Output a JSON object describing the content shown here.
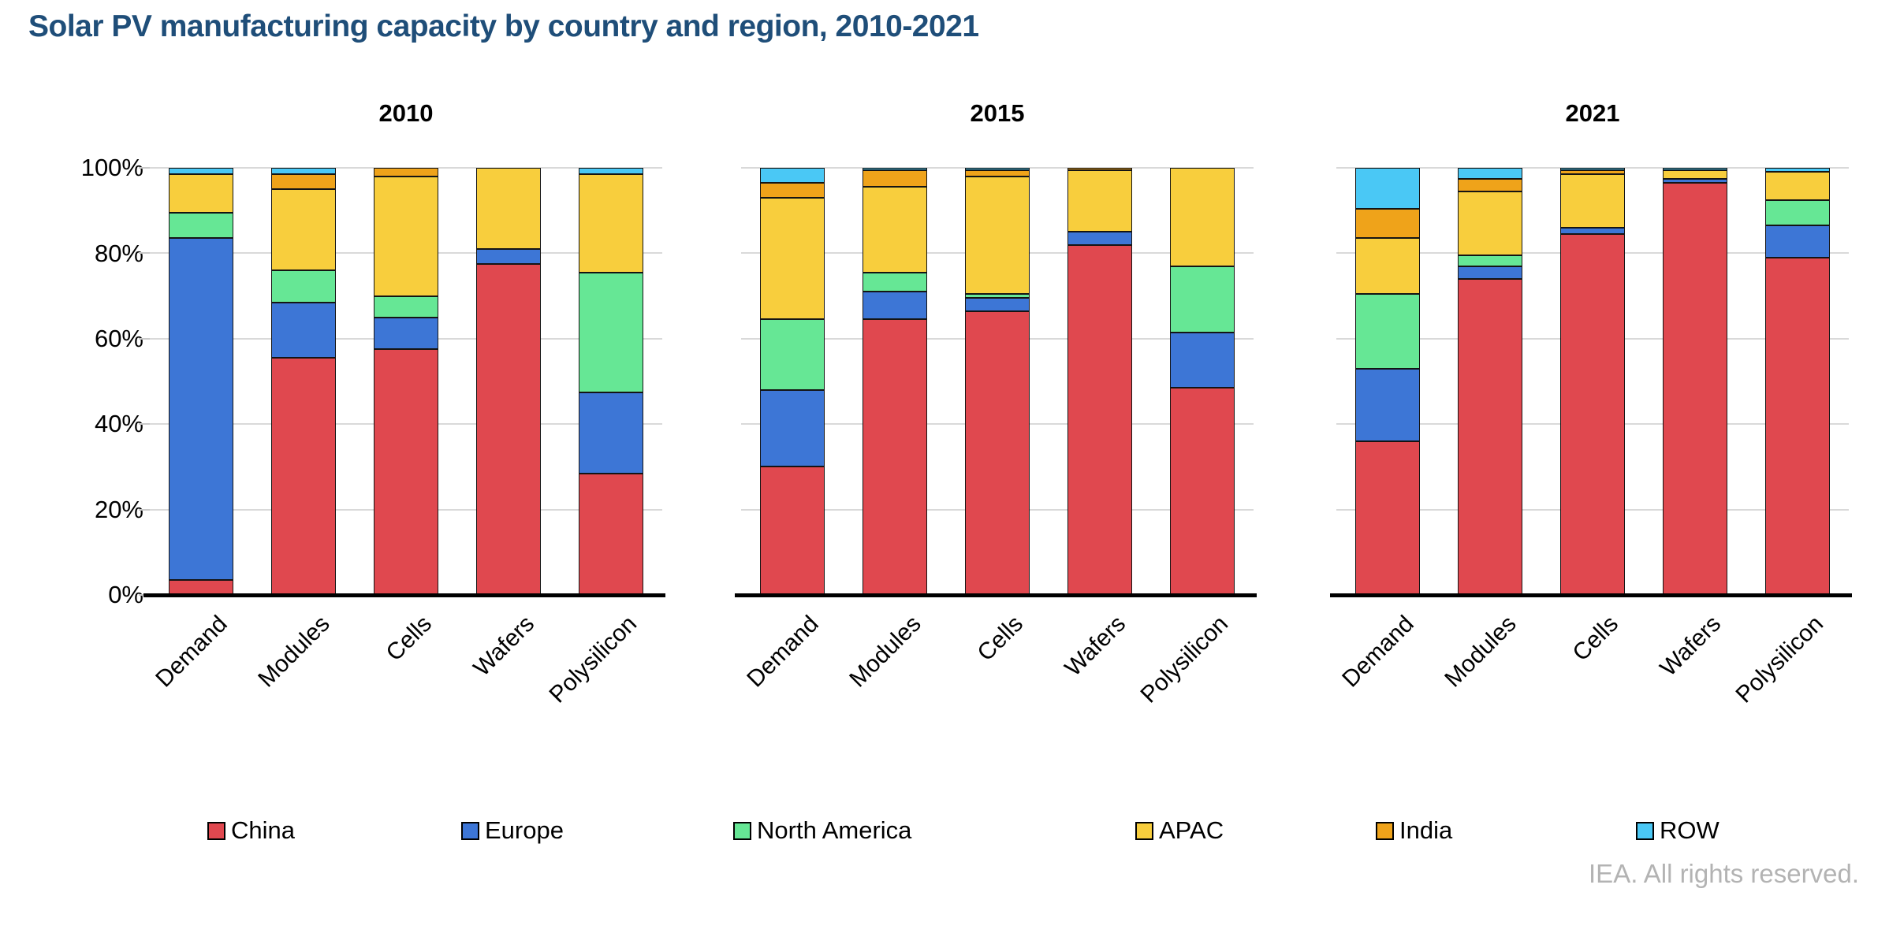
{
  "page": {
    "title": "Solar PV manufacturing capacity by country and region, 2010-2021",
    "footer": "IEA. All rights reserved."
  },
  "axis": {
    "y_ticks": [
      "0%",
      "20%",
      "40%",
      "60%",
      "80%",
      "100%"
    ],
    "categories": [
      "Demand",
      "Modules",
      "Cells",
      "Wafers",
      "Polysilicon"
    ]
  },
  "legend": [
    {
      "name": "China",
      "color": "#E0484F"
    },
    {
      "name": "Europe",
      "color": "#3D76D6"
    },
    {
      "name": "North America",
      "color": "#66E795"
    },
    {
      "name": "APAC",
      "color": "#F8CE3D"
    },
    {
      "name": "India",
      "color": "#EFA31A"
    },
    {
      "name": "ROW",
      "color": "#4AC8F5"
    }
  ],
  "colors": {
    "segment_border": "#141414",
    "gridline": "#D9D9D9",
    "title_navy": "#1F4E79",
    "footer_gray": "#B3B3B3"
  },
  "chart_data": {
    "type": "bar",
    "stacked": true,
    "unit": "percent share",
    "ylim": [
      0,
      100
    ],
    "grid": "horizontal",
    "legend_position": "bottom",
    "title": "Solar PV manufacturing capacity by country and region, 2010-2021",
    "categories": [
      "Demand",
      "Modules",
      "Cells",
      "Wafers",
      "Polysilicon"
    ],
    "panels": [
      {
        "title": "2010",
        "series": [
          {
            "name": "China",
            "values": [
              3.5,
              55.5,
              57.5,
              77.5,
              28.5
            ]
          },
          {
            "name": "Europe",
            "values": [
              80,
              13,
              7.5,
              3.5,
              19
            ]
          },
          {
            "name": "North America",
            "values": [
              6,
              7.5,
              5,
              0,
              28
            ]
          },
          {
            "name": "APAC",
            "values": [
              9,
              19,
              28,
              19,
              23
            ]
          },
          {
            "name": "India",
            "values": [
              0,
              3.5,
              2,
              0,
              0
            ]
          },
          {
            "name": "ROW",
            "values": [
              1.5,
              1.5,
              0,
              0,
              1.5
            ]
          }
        ]
      },
      {
        "title": "2015",
        "series": [
          {
            "name": "China",
            "values": [
              30,
              64.5,
              66.5,
              82,
              48.5
            ]
          },
          {
            "name": "Europe",
            "values": [
              18,
              6.5,
              3,
              3,
              13
            ]
          },
          {
            "name": "North America",
            "values": [
              16.5,
              4.5,
              1,
              0,
              15.5
            ]
          },
          {
            "name": "APAC",
            "values": [
              28.5,
              20,
              27.5,
              14.5,
              23
            ]
          },
          {
            "name": "India",
            "values": [
              3.5,
              4,
              1.5,
              0.5,
              0
            ]
          },
          {
            "name": "ROW",
            "values": [
              3.5,
              0.5,
              0.5,
              0,
              0
            ]
          }
        ]
      },
      {
        "title": "2021",
        "series": [
          {
            "name": "China",
            "values": [
              36,
              74,
              84.5,
              96.5,
              79
            ]
          },
          {
            "name": "Europe",
            "values": [
              17,
              3,
              1.5,
              1,
              7.5
            ]
          },
          {
            "name": "North America",
            "values": [
              17.5,
              2.5,
              0,
              0,
              6
            ]
          },
          {
            "name": "APAC",
            "values": [
              13,
              15,
              12.5,
              2,
              6.5
            ]
          },
          {
            "name": "India",
            "values": [
              7,
              3,
              1,
              0,
              0
            ]
          },
          {
            "name": "ROW",
            "values": [
              9.5,
              2.5,
              0.5,
              0.5,
              1
            ]
          }
        ]
      }
    ]
  }
}
